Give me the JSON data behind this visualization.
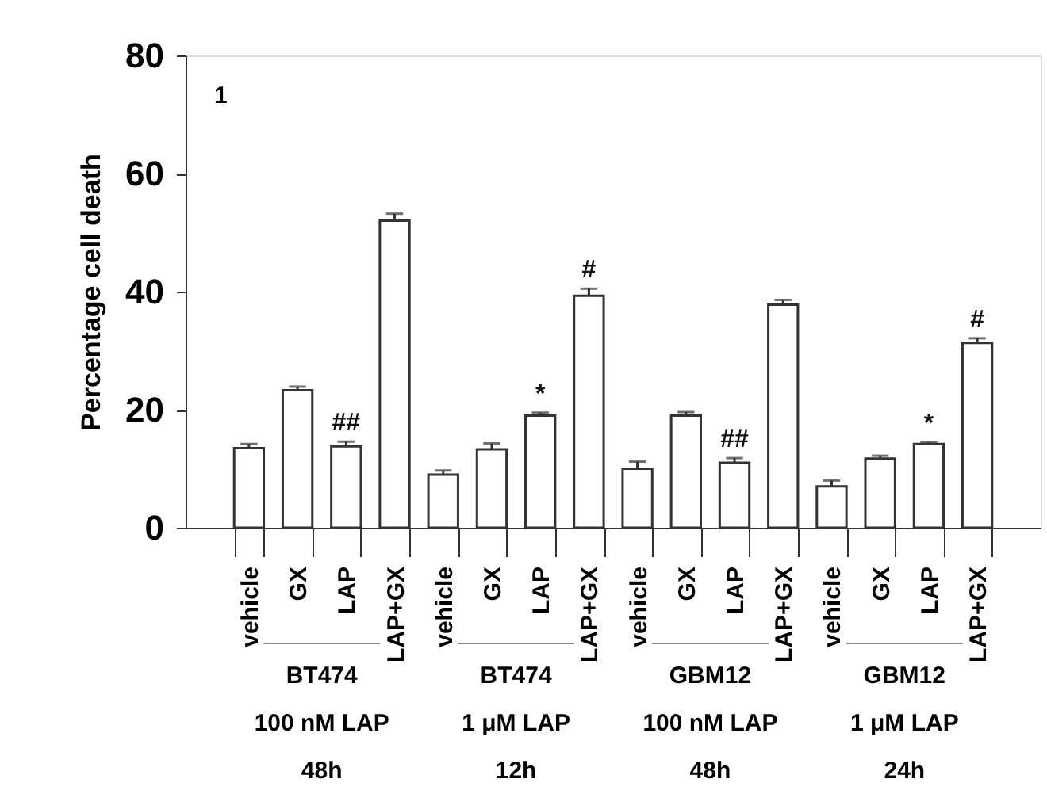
{
  "chart_data": {
    "type": "bar",
    "ylabel": "Percentage cell death",
    "categories": [
      "vehicle",
      "GX",
      "LAP",
      "LAP+GX",
      "vehicle",
      "GX",
      "LAP",
      "LAP+GX",
      "vehicle",
      "GX",
      "LAP",
      "LAP+GX",
      "vehicle",
      "GX",
      "LAP",
      "LAP+GX"
    ],
    "values": [
      13.5,
      23.3,
      13.8,
      52,
      9,
      13.3,
      19,
      39.3,
      10,
      19,
      11,
      37.8,
      7,
      11.7,
      14.2,
      31.3
    ],
    "errors": [
      0.7,
      0.6,
      0.8,
      1.2,
      0.7,
      1,
      0.5,
      1.2,
      1.2,
      0.6,
      0.8,
      0.8,
      1,
      0.5,
      0.3,
      0.8
    ],
    "value_labels": [
      null,
      null,
      "##",
      null,
      null,
      null,
      "*",
      "#",
      null,
      null,
      "##",
      null,
      null,
      null,
      "*",
      "#"
    ],
    "color": "#ffffff",
    "ylim": [
      0,
      80
    ],
    "yticks": [
      0,
      20,
      40,
      60,
      80
    ],
    "grid": false,
    "annotations": [
      "1",
      "BT474",
      "100 nM LAP",
      "48h",
      "BT474",
      "1 μM LAP",
      "12h",
      "GBM12",
      "100 nM LAP",
      "48h",
      "GBM12",
      "1 μM LAP",
      "24h"
    ]
  }
}
